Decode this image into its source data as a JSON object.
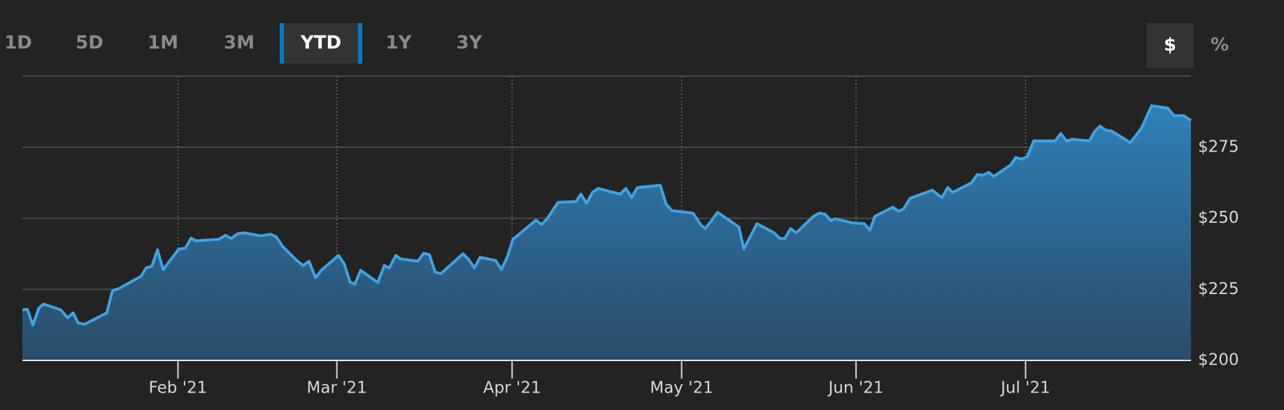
{
  "tabs": [
    {
      "label": "1D",
      "active": false
    },
    {
      "label": "5D",
      "active": false
    },
    {
      "label": "1M",
      "active": false
    },
    {
      "label": "3M",
      "active": false
    },
    {
      "label": "YTD",
      "active": true
    },
    {
      "label": "1Y",
      "active": false
    },
    {
      "label": "3Y",
      "active": false
    }
  ],
  "units": [
    {
      "label": "$",
      "active": true
    },
    {
      "label": "%",
      "active": false
    }
  ],
  "chart_data": {
    "type": "area",
    "x": [
      0,
      0.6,
      1.3,
      2,
      2.6,
      4.7,
      5.5,
      6.2,
      6.8,
      7.6,
      10.3,
      11,
      11.8,
      14.5,
      15.1,
      15.8,
      16.5,
      17.2,
      19.1,
      19.9,
      20.6,
      21.2,
      24,
      24.8,
      25.5,
      26.3,
      27.1,
      29.1,
      30.3,
      31,
      31.8,
      33.6,
      34.3,
      35,
      35.8,
      36.6,
      38.6,
      39.3,
      40,
      40.6,
      41.3,
      43.4,
      44.2,
      44.8,
      45.6,
      46.2,
      48.3,
      49,
      49.7,
      50.4,
      51.1,
      53.8,
      54.5,
      55.2,
      55.9,
      57.8,
      58.5,
      59.2,
      59.9,
      62.7,
      63.4,
      64.1,
      65.4,
      67.6,
      68.2,
      68.9,
      69.6,
      70.3,
      73,
      73.7,
      74.4,
      75.1,
      77.9,
      78.6,
      79.3,
      81.9,
      82.9,
      83.4,
      84.9,
      87.5,
      88.1,
      89.7,
      91.8,
      92.5,
      93.1,
      93.8,
      94.5,
      96.6,
      97.3,
      98,
      98.7,
      99.3,
      101.3,
      102.8,
      103.5,
      104.1,
      106.3,
      107,
      107.6,
      108.4,
      111.1,
      111.7,
      112.3,
      113,
      113.6,
      115.9,
      116.6,
      117.3,
      118,
      118.6,
      120.7,
      121.3,
      122,
      122.7,
      123.5,
      126.1,
      126.8,
      127.5,
      128.2,
      130.3,
      130.9,
      131.6,
      132.3,
      133,
      135.3,
      136.6,
      137.9,
      139.9,
      140.6,
      141.8,
      142.7
    ],
    "series": [
      {
        "color": "#3fa3e2",
        "values": [
          217.8,
          218,
          212.4,
          218.4,
          219.8,
          217.8,
          215,
          216.7,
          213.2,
          212.7,
          216.7,
          224.5,
          225.3,
          229.6,
          232.5,
          233.1,
          238.9,
          232,
          239.2,
          239.5,
          243,
          242.1,
          242.6,
          244,
          242.9,
          244.6,
          244.9,
          243.8,
          244.4,
          243.5,
          240,
          234.9,
          233.4,
          234.9,
          229.1,
          232,
          236.9,
          234,
          227.6,
          226.8,
          231.7,
          227.4,
          233.4,
          232.5,
          236.9,
          235.7,
          234.9,
          237.7,
          237.2,
          231.1,
          230.5,
          237.5,
          235.5,
          232.5,
          236.3,
          235.1,
          232,
          236.3,
          242.6,
          249.3,
          247.8,
          249.9,
          255.6,
          255.9,
          258.5,
          255.3,
          259.1,
          260.5,
          258.5,
          260.5,
          257.3,
          260.8,
          261.6,
          255,
          252.7,
          251.8,
          247.5,
          246.4,
          252.1,
          246.9,
          239.2,
          248.1,
          244.9,
          242.9,
          242.9,
          246.4,
          244.9,
          250.7,
          251.8,
          251.5,
          249.2,
          249.8,
          248.4,
          248.1,
          245.8,
          250.7,
          253.9,
          252.4,
          253.3,
          257,
          259.9,
          258.5,
          257.3,
          260.8,
          259.1,
          262.5,
          265.4,
          265.1,
          266.2,
          264.7,
          268.8,
          271.4,
          270.8,
          271.7,
          277.2,
          277.2,
          279.8,
          277.2,
          277.8,
          277.2,
          280.4,
          282.4,
          281,
          280.7,
          276.6,
          281.5,
          289.6,
          288.7,
          286.1,
          286.1,
          284.4
        ]
      }
    ],
    "xlim": [
      0,
      142.7
    ],
    "xticks": [
      {
        "value": 19,
        "label": "Feb '21"
      },
      {
        "value": 38.4,
        "label": "Mar '21"
      },
      {
        "value": 59.8,
        "label": "Apr '21"
      },
      {
        "value": 80.5,
        "label": "May '21"
      },
      {
        "value": 101.8,
        "label": "Jun '21"
      },
      {
        "value": 122.5,
        "label": "Jul '21"
      }
    ],
    "ylim": [
      200,
      300
    ],
    "yticks": [
      {
        "value": 200,
        "label": "$200"
      },
      {
        "value": 225,
        "label": "$225"
      },
      {
        "value": 250,
        "label": "$250"
      },
      {
        "value": 275,
        "label": "$275"
      }
    ],
    "grid": true
  }
}
